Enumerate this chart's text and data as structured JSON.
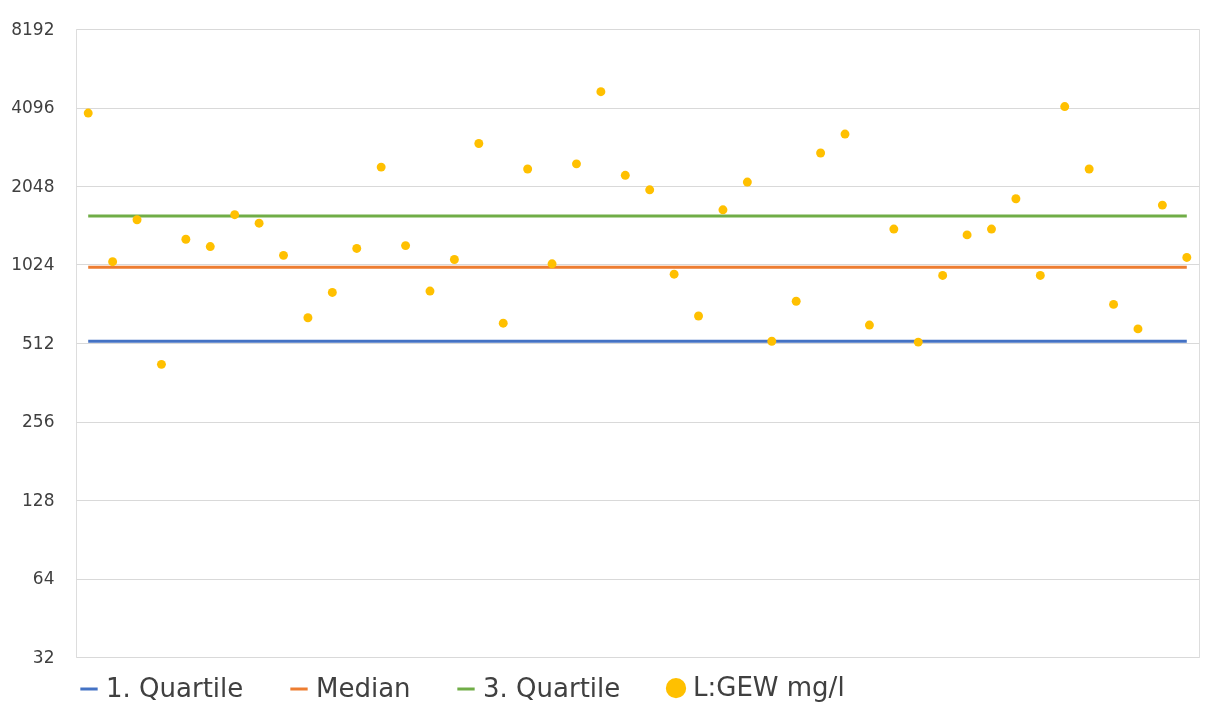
{
  "chart_data": {
    "type": "scatter",
    "categories": [
      null,
      null,
      null,
      null,
      null,
      null,
      null,
      null,
      null,
      null,
      null,
      null,
      null,
      null,
      null,
      null,
      null,
      null,
      null,
      null,
      null,
      null,
      null,
      null,
      null,
      null,
      null,
      null,
      null,
      null,
      null,
      null,
      null,
      null,
      null,
      null,
      null,
      null,
      null,
      null,
      null,
      null,
      null,
      null,
      null,
      null
    ],
    "series": [
      {
        "name": "1. Quartile",
        "type": "line",
        "color": "#4472c4",
        "values": [
          520,
          520,
          520,
          520,
          520,
          520,
          520,
          520,
          520,
          520,
          520,
          520,
          520,
          520,
          520,
          520,
          520,
          520,
          520,
          520,
          520,
          520,
          520,
          520,
          520,
          520,
          520,
          520,
          520,
          520,
          520,
          520,
          520,
          520,
          520,
          520,
          520,
          520,
          520,
          520,
          520,
          520,
          520,
          520,
          520,
          520
        ]
      },
      {
        "name": "Median",
        "type": "line",
        "color": "#ed7d31",
        "values": [
          1000,
          1000,
          1000,
          1000,
          1000,
          1000,
          1000,
          1000,
          1000,
          1000,
          1000,
          1000,
          1000,
          1000,
          1000,
          1000,
          1000,
          1000,
          1000,
          1000,
          1000,
          1000,
          1000,
          1000,
          1000,
          1000,
          1000,
          1000,
          1000,
          1000,
          1000,
          1000,
          1000,
          1000,
          1000,
          1000,
          1000,
          1000,
          1000,
          1000,
          1000,
          1000,
          1000,
          1000,
          1000,
          1000
        ]
      },
      {
        "name": "3. Quartile",
        "type": "line",
        "color": "#70ad47",
        "values": [
          1570,
          1570,
          1570,
          1570,
          1570,
          1570,
          1570,
          1570,
          1570,
          1570,
          1570,
          1570,
          1570,
          1570,
          1570,
          1570,
          1570,
          1570,
          1570,
          1570,
          1570,
          1570,
          1570,
          1570,
          1570,
          1570,
          1570,
          1570,
          1570,
          1570,
          1570,
          1570,
          1570,
          1570,
          1570,
          1570,
          1570,
          1570,
          1570,
          1570,
          1570,
          1570,
          1570,
          1570,
          1570,
          1570
        ]
      },
      {
        "name": "L:GEW mg/l",
        "marker": "circle",
        "color": "#ffc000",
        "values": [
          3900,
          1050,
          1520,
          424,
          1280,
          1200,
          1590,
          1475,
          1110,
          640,
          800,
          1180,
          2420,
          1210,
          810,
          1070,
          2980,
          610,
          2380,
          1030,
          2490,
          4710,
          2250,
          1980,
          940,
          650,
          1660,
          2120,
          520,
          740,
          2740,
          3240,
          600,
          1400,
          516,
          930,
          1330,
          1400,
          1830,
          930,
          4130,
          2380,
          720,
          580,
          1730,
          1090
        ]
      }
    ],
    "ylim": [
      32,
      8192
    ],
    "yticks": [
      32,
      64,
      128,
      256,
      512,
      1024,
      2048,
      4096,
      8192
    ],
    "log": true,
    "grid": "y",
    "legend": "bottom",
    "tick_labels": "y"
  }
}
